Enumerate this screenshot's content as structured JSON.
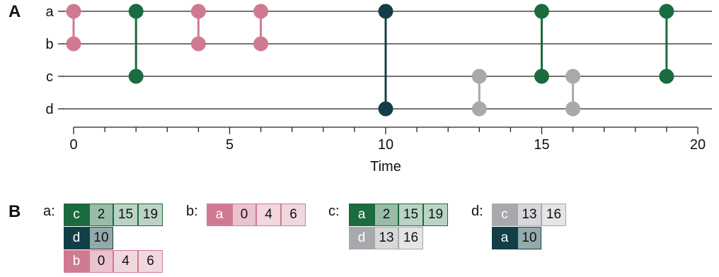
{
  "panel_a_label": "A",
  "panel_b_label": "B",
  "colors": {
    "pink": "#d07a92",
    "green": "#1a6b3e",
    "teal": "#123f47",
    "gray": "#a7a9ac"
  },
  "chart_data": {
    "type": "timeline",
    "xlabel": "Time",
    "xlim": [
      0,
      20
    ],
    "tick_labels": [
      "0",
      "5",
      "10",
      "15",
      "20"
    ],
    "nodes": [
      "a",
      "b",
      "c",
      "d"
    ],
    "events": [
      {
        "time": 0,
        "from": "a",
        "to": "b",
        "color": "pink"
      },
      {
        "time": 2,
        "from": "a",
        "to": "c",
        "color": "green"
      },
      {
        "time": 4,
        "from": "a",
        "to": "b",
        "color": "pink"
      },
      {
        "time": 6,
        "from": "a",
        "to": "b",
        "color": "pink"
      },
      {
        "time": 10,
        "from": "a",
        "to": "d",
        "color": "teal"
      },
      {
        "time": 13,
        "from": "c",
        "to": "d",
        "color": "gray"
      },
      {
        "time": 15,
        "from": "a",
        "to": "c",
        "color": "green"
      },
      {
        "time": 16,
        "from": "c",
        "to": "d",
        "color": "gray"
      },
      {
        "time": 19,
        "from": "a",
        "to": "c",
        "color": "green"
      }
    ]
  },
  "tables": [
    {
      "node": "a:",
      "rows": [
        {
          "key": "c",
          "color": "green",
          "times": [
            "2",
            "15",
            "19"
          ]
        },
        {
          "key": "d",
          "color": "teal",
          "times": [
            "10"
          ]
        },
        {
          "key": "b",
          "color": "pink",
          "times": [
            "0",
            "4",
            "6"
          ]
        }
      ]
    },
    {
      "node": "b:",
      "rows": [
        {
          "key": "a",
          "color": "pink",
          "times": [
            "0",
            "4",
            "6"
          ]
        }
      ]
    },
    {
      "node": "c:",
      "rows": [
        {
          "key": "a",
          "color": "green",
          "times": [
            "2",
            "15",
            "19"
          ]
        },
        {
          "key": "d",
          "color": "gray",
          "times": [
            "13",
            "16"
          ]
        }
      ]
    },
    {
      "node": "d:",
      "rows": [
        {
          "key": "c",
          "color": "gray",
          "times": [
            "13",
            "16"
          ]
        },
        {
          "key": "a",
          "color": "teal",
          "times": [
            "10"
          ]
        }
      ]
    }
  ]
}
